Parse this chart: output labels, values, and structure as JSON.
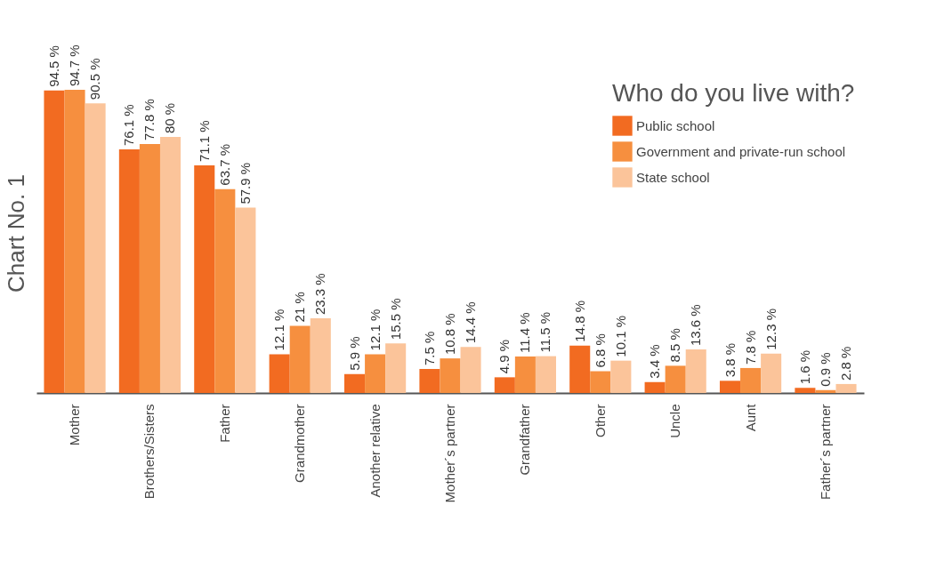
{
  "chart_data": {
    "type": "bar",
    "ylabel": "Chart No. 1",
    "legend_title": "Who do you live with?",
    "categories": [
      "Mother",
      "Brothers/Sisters",
      "Father",
      "Grandmother",
      "Another relative",
      "Mother´s partner",
      "Grandfather",
      "Other",
      "Uncle",
      "Aunt",
      "Father´s partner"
    ],
    "series": [
      {
        "name": "Public school",
        "color": "#f26b21",
        "values": [
          94.5,
          76.1,
          71.1,
          12.1,
          5.9,
          7.5,
          4.9,
          14.8,
          3.4,
          3.8,
          1.6
        ],
        "value_labels": [
          "94.5 %",
          "76.1 %",
          "71.1 %",
          "12.1 %",
          "5.9 %",
          "7.5 %",
          "4.9 %",
          "14.8 %",
          "3.4 %",
          "3.8 %",
          "1.6 %"
        ]
      },
      {
        "name": "Government and private-run school",
        "color": "#f68f3f",
        "values": [
          94.7,
          77.8,
          63.7,
          21,
          12.1,
          10.8,
          11.4,
          6.8,
          8.5,
          7.8,
          0.9
        ],
        "value_labels": [
          "94.7 %",
          "77.8 %",
          "63.7 %",
          "21 %",
          "12.1 %",
          "10.8 %",
          "11.4 %",
          "6.8 %",
          "8.5 %",
          "7.8 %",
          "0.9 %"
        ]
      },
      {
        "name": "State school",
        "color": "#fbc49a",
        "values": [
          90.5,
          80,
          57.9,
          23.3,
          15.5,
          14.4,
          11.5,
          10.1,
          13.6,
          12.3,
          2.8
        ],
        "value_labels": [
          "90.5 %",
          "80 %",
          "57.9 %",
          "23.3 %",
          "15.5 %",
          "14.4 %",
          "11.5 %",
          "10.1 %",
          "13.6 %",
          "12.3 %",
          "2.8 %"
        ]
      }
    ],
    "legend": "top right",
    "grid": false
  }
}
